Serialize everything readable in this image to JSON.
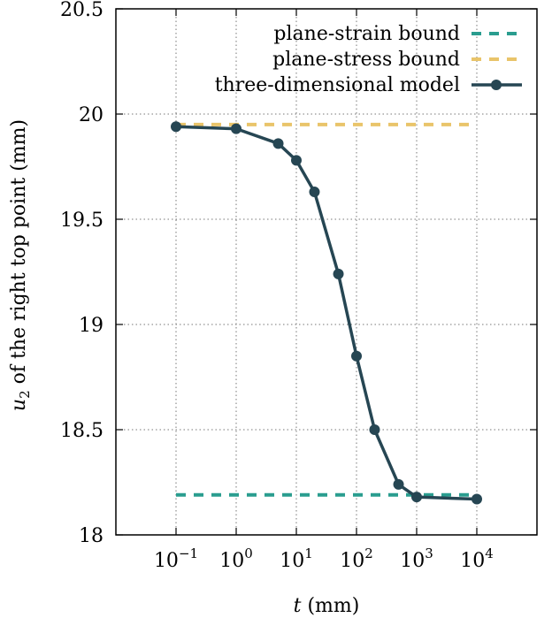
{
  "chart_data": {
    "type": "line",
    "title": "",
    "xlabel_italic": "t",
    "xlabel_rest": " (mm)",
    "ylabel_var": "u",
    "ylabel_sub": "2",
    "ylabel_rest": " of the right top point (mm)",
    "x_scale": "log",
    "xlim": [
      0.01,
      100000
    ],
    "ylim": [
      18,
      20.5
    ],
    "x_ticks": [
      {
        "value": 0.1,
        "base": "10",
        "exp": "−1"
      },
      {
        "value": 1,
        "base": "10",
        "exp": "0"
      },
      {
        "value": 10,
        "base": "10",
        "exp": "1"
      },
      {
        "value": 100,
        "base": "10",
        "exp": "2"
      },
      {
        "value": 1000,
        "base": "10",
        "exp": "3"
      },
      {
        "value": 10000,
        "base": "10",
        "exp": "4"
      }
    ],
    "y_ticks": [
      {
        "value": 18,
        "label": "18"
      },
      {
        "value": 18.5,
        "label": "18.5"
      },
      {
        "value": 19,
        "label": "19"
      },
      {
        "value": 19.5,
        "label": "19.5"
      },
      {
        "value": 20,
        "label": "20"
      },
      {
        "value": 20.5,
        "label": "20.5"
      }
    ],
    "grid": true,
    "legend_position": "top-right",
    "series": [
      {
        "name": "plane-strain bound",
        "style": "dashed",
        "color": "#2a9d8f",
        "x": [
          0.1,
          10000
        ],
        "y": [
          18.19,
          18.19
        ]
      },
      {
        "name": "plane-stress bound",
        "style": "dashed",
        "color": "#e9c46a",
        "x": [
          0.1,
          10000
        ],
        "y": [
          19.95,
          19.95
        ]
      },
      {
        "name": "three-dimensional model",
        "style": "line-markers",
        "color": "#264653",
        "x": [
          0.1,
          1,
          5,
          10,
          20,
          50,
          100,
          200,
          500,
          1000,
          10000
        ],
        "y": [
          19.94,
          19.93,
          19.86,
          19.78,
          19.63,
          19.24,
          18.85,
          18.5,
          18.24,
          18.18,
          18.17
        ]
      }
    ]
  }
}
